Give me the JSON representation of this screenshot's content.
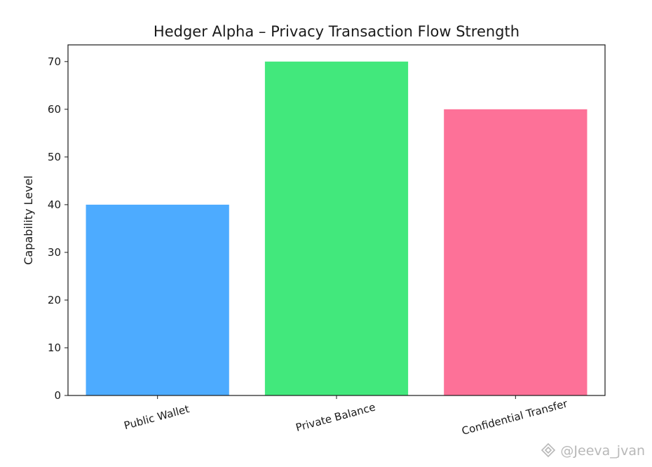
{
  "chart_data": {
    "type": "bar",
    "title": "Hedger Alpha – Privacy Transaction Flow Strength",
    "xlabel": "",
    "ylabel": "Capability Level",
    "categories": [
      "Public Wallet",
      "Private Balance",
      "Confidential Transfer"
    ],
    "values": [
      40,
      70,
      60
    ],
    "colors": [
      "#4dabff",
      "#42e87c",
      "#fd7198"
    ],
    "ylim": [
      0,
      73.5
    ],
    "yticks": [
      0,
      10,
      20,
      30,
      40,
      50,
      60,
      70
    ],
    "grid": false,
    "legend": "none"
  },
  "watermark": {
    "text": "@Jeeva_jvan",
    "icon": "exchange-diamond-icon"
  }
}
